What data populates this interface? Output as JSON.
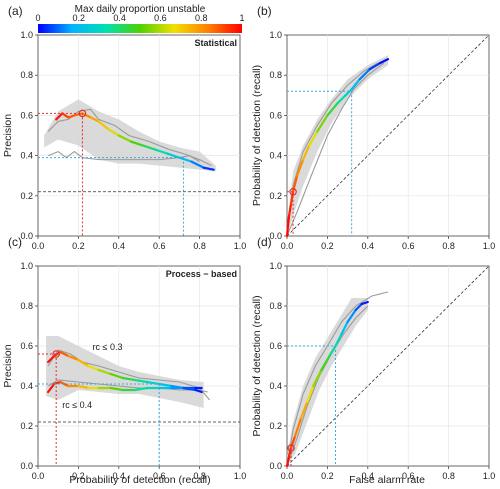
{
  "colorbar": {
    "title": "Max daily proportion unstable",
    "ticks": [
      "0",
      "0.2",
      "0.4",
      "0.6",
      "0.8",
      "1"
    ],
    "tick_values": [
      0,
      0.2,
      0.4,
      0.6,
      0.8,
      1
    ],
    "colors": [
      "#0000ff",
      "#00b4ff",
      "#00e0b0",
      "#4cd200",
      "#f0e000",
      "#ff8000",
      "#ff0000"
    ]
  },
  "figure": {
    "shared_xlabel_left": "Probability of detection (recall)",
    "shared_xlabel_right": "False alarm rate"
  },
  "chart_data": [
    {
      "panel": "(a)",
      "title": "Statistical",
      "type": "line",
      "xlabel": "",
      "ylabel": "Precision",
      "xlim": [
        0,
        1
      ],
      "ylim": [
        0,
        1
      ],
      "xticks": [
        "0.0",
        "0.2",
        "0.4",
        "0.6",
        "0.8",
        "1.0"
      ],
      "yticks": [
        "0.0",
        "0.2",
        "0.4",
        "0.6",
        "0.8",
        "1.0"
      ],
      "grid": true,
      "diagonal": false,
      "baseline_y": 0.22,
      "markers": [
        {
          "x": 0.22,
          "y": 0.61,
          "color": "#e03030"
        },
        {
          "x": 0.72,
          "y": 0.39,
          "color": "#3aa8dd"
        }
      ],
      "band": {
        "upper": [
          [
            0.03,
            0.5
          ],
          [
            0.1,
            0.62
          ],
          [
            0.2,
            0.68
          ],
          [
            0.3,
            0.62
          ],
          [
            0.4,
            0.58
          ],
          [
            0.5,
            0.52
          ],
          [
            0.6,
            0.47
          ],
          [
            0.7,
            0.44
          ],
          [
            0.8,
            0.42
          ],
          [
            0.88,
            0.35
          ]
        ],
        "lower": [
          [
            0.88,
            0.32
          ],
          [
            0.8,
            0.33
          ],
          [
            0.7,
            0.34
          ],
          [
            0.6,
            0.35
          ],
          [
            0.5,
            0.36
          ],
          [
            0.4,
            0.36
          ],
          [
            0.3,
            0.38
          ],
          [
            0.2,
            0.45
          ],
          [
            0.1,
            0.48
          ],
          [
            0.03,
            0.44
          ]
        ]
      },
      "grey_lines": [
        [
          [
            0.05,
            0.52
          ],
          [
            0.1,
            0.57
          ],
          [
            0.15,
            0.58
          ],
          [
            0.2,
            0.62
          ],
          [
            0.26,
            0.63
          ],
          [
            0.3,
            0.58
          ],
          [
            0.38,
            0.55
          ],
          [
            0.45,
            0.5
          ],
          [
            0.55,
            0.47
          ],
          [
            0.65,
            0.43
          ],
          [
            0.72,
            0.41
          ],
          [
            0.8,
            0.38
          ],
          [
            0.86,
            0.35
          ]
        ],
        [
          [
            0.05,
            0.4
          ],
          [
            0.1,
            0.42
          ],
          [
            0.14,
            0.39
          ],
          [
            0.18,
            0.42
          ],
          [
            0.22,
            0.39
          ],
          [
            0.3,
            0.38
          ],
          [
            0.4,
            0.38
          ],
          [
            0.5,
            0.38
          ],
          [
            0.6,
            0.38
          ],
          [
            0.7,
            0.39
          ],
          [
            0.75,
            0.4
          ],
          [
            0.8,
            0.37
          ]
        ]
      ],
      "color_line": {
        "x": [
          0.09,
          0.12,
          0.15,
          0.18,
          0.22,
          0.26,
          0.3,
          0.35,
          0.4,
          0.46,
          0.52,
          0.58,
          0.64,
          0.7,
          0.76,
          0.82,
          0.87
        ],
        "y": [
          0.58,
          0.61,
          0.59,
          0.6,
          0.61,
          0.59,
          0.57,
          0.53,
          0.5,
          0.47,
          0.45,
          0.43,
          0.41,
          0.39,
          0.37,
          0.34,
          0.33
        ],
        "c": [
          1.0,
          0.95,
          0.9,
          0.88,
          0.85,
          0.8,
          0.75,
          0.68,
          0.6,
          0.52,
          0.45,
          0.38,
          0.3,
          0.22,
          0.15,
          0.08,
          0.02
        ]
      },
      "annotations": []
    },
    {
      "panel": "(b)",
      "title": "",
      "type": "line",
      "xlabel": "",
      "ylabel": "Probability of detection (recall)",
      "xlim": [
        0,
        1
      ],
      "ylim": [
        0,
        1
      ],
      "xticks": [
        "0.0",
        "0.2",
        "0.4",
        "0.6",
        "0.8",
        "1.0"
      ],
      "yticks": [
        "0.0",
        "0.2",
        "0.4",
        "0.6",
        "0.8",
        "1.0"
      ],
      "grid": true,
      "diagonal": true,
      "baseline_y": null,
      "markers": [
        {
          "x": 0.03,
          "y": 0.22,
          "color": "#e03030"
        },
        {
          "x": 0.32,
          "y": 0.72,
          "color": "#3aa8dd"
        }
      ],
      "band": {
        "upper": [
          [
            0.0,
            0.05
          ],
          [
            0.03,
            0.32
          ],
          [
            0.08,
            0.45
          ],
          [
            0.15,
            0.58
          ],
          [
            0.22,
            0.68
          ],
          [
            0.3,
            0.78
          ],
          [
            0.4,
            0.85
          ],
          [
            0.5,
            0.9
          ]
        ],
        "lower": [
          [
            0.5,
            0.85
          ],
          [
            0.4,
            0.78
          ],
          [
            0.3,
            0.68
          ],
          [
            0.22,
            0.56
          ],
          [
            0.15,
            0.42
          ],
          [
            0.08,
            0.25
          ],
          [
            0.03,
            0.1
          ],
          [
            0.0,
            0.0
          ]
        ]
      },
      "grey_lines": [
        [
          [
            0.0,
            0.0
          ],
          [
            0.03,
            0.25
          ],
          [
            0.08,
            0.42
          ],
          [
            0.15,
            0.55
          ],
          [
            0.22,
            0.66
          ],
          [
            0.3,
            0.75
          ],
          [
            0.38,
            0.82
          ],
          [
            0.45,
            0.86
          ]
        ],
        [
          [
            0.0,
            0.0
          ],
          [
            0.05,
            0.12
          ],
          [
            0.12,
            0.3
          ],
          [
            0.2,
            0.5
          ],
          [
            0.27,
            0.63
          ],
          [
            0.33,
            0.73
          ],
          [
            0.4,
            0.8
          ],
          [
            0.48,
            0.86
          ]
        ]
      ],
      "color_line": {
        "x": [
          0.0,
          0.01,
          0.02,
          0.03,
          0.05,
          0.08,
          0.11,
          0.15,
          0.2,
          0.25,
          0.29,
          0.32,
          0.36,
          0.41,
          0.46,
          0.5
        ],
        "y": [
          0.0,
          0.1,
          0.16,
          0.22,
          0.3,
          0.38,
          0.45,
          0.52,
          0.6,
          0.66,
          0.7,
          0.73,
          0.78,
          0.83,
          0.86,
          0.88
        ],
        "c": [
          1.0,
          0.98,
          0.95,
          0.9,
          0.85,
          0.78,
          0.7,
          0.6,
          0.5,
          0.4,
          0.3,
          0.22,
          0.15,
          0.08,
          0.03,
          0.0
        ]
      },
      "annotations": []
    },
    {
      "panel": "(c)",
      "title": "Process − based",
      "type": "line",
      "xlabel": "Probability of detection (recall)",
      "ylabel": "Precision",
      "xlim": [
        0,
        1
      ],
      "ylim": [
        0,
        1
      ],
      "xticks": [
        "0.0",
        "0.2",
        "0.4",
        "0.6",
        "0.8",
        "1.0"
      ],
      "yticks": [
        "0.0",
        "0.2",
        "0.4",
        "0.6",
        "0.8",
        "1.0"
      ],
      "grid": true,
      "diagonal": false,
      "baseline_y": 0.22,
      "markers": [
        {
          "x": 0.09,
          "y": 0.56,
          "color": "#e03030"
        },
        {
          "x": 0.6,
          "y": 0.41,
          "color": "#3aa8dd"
        }
      ],
      "band": {
        "upper": [
          [
            0.04,
            0.65
          ],
          [
            0.1,
            0.65
          ],
          [
            0.2,
            0.6
          ],
          [
            0.3,
            0.55
          ],
          [
            0.4,
            0.5
          ],
          [
            0.5,
            0.47
          ],
          [
            0.6,
            0.45
          ],
          [
            0.7,
            0.43
          ],
          [
            0.82,
            0.42
          ]
        ],
        "lower": [
          [
            0.82,
            0.29
          ],
          [
            0.7,
            0.32
          ],
          [
            0.6,
            0.34
          ],
          [
            0.5,
            0.36
          ],
          [
            0.4,
            0.36
          ],
          [
            0.3,
            0.37
          ],
          [
            0.2,
            0.38
          ],
          [
            0.1,
            0.33
          ],
          [
            0.04,
            0.35
          ]
        ]
      },
      "grey_lines": [
        [
          [
            0.05,
            0.5
          ],
          [
            0.1,
            0.58
          ],
          [
            0.16,
            0.56
          ],
          [
            0.22,
            0.52
          ],
          [
            0.3,
            0.5
          ],
          [
            0.4,
            0.47
          ],
          [
            0.5,
            0.44
          ],
          [
            0.6,
            0.43
          ],
          [
            0.7,
            0.42
          ],
          [
            0.8,
            0.39
          ],
          [
            0.85,
            0.33
          ]
        ],
        [
          [
            0.05,
            0.4
          ],
          [
            0.1,
            0.43
          ],
          [
            0.2,
            0.42
          ],
          [
            0.3,
            0.41
          ],
          [
            0.4,
            0.4
          ],
          [
            0.5,
            0.39
          ],
          [
            0.6,
            0.39
          ],
          [
            0.7,
            0.38
          ],
          [
            0.8,
            0.38
          ],
          [
            0.84,
            0.37
          ]
        ]
      ],
      "color_line": {
        "x": [
          0.05,
          0.08,
          0.11,
          0.15,
          0.2,
          0.25,
          0.3,
          0.36,
          0.42,
          0.48,
          0.54,
          0.6,
          0.66,
          0.72,
          0.78,
          0.81
        ],
        "y": [
          0.52,
          0.55,
          0.57,
          0.55,
          0.53,
          0.5,
          0.48,
          0.46,
          0.44,
          0.43,
          0.42,
          0.41,
          0.4,
          0.39,
          0.38,
          0.37
        ],
        "c": [
          1.0,
          0.96,
          0.92,
          0.85,
          0.78,
          0.7,
          0.62,
          0.55,
          0.48,
          0.4,
          0.32,
          0.25,
          0.18,
          0.1,
          0.05,
          0.0
        ]
      },
      "color_line2": {
        "x": [
          0.05,
          0.08,
          0.11,
          0.15,
          0.2,
          0.25,
          0.3,
          0.36,
          0.42,
          0.48,
          0.54,
          0.6,
          0.66,
          0.72,
          0.78,
          0.81
        ],
        "y": [
          0.37,
          0.41,
          0.42,
          0.4,
          0.4,
          0.39,
          0.39,
          0.39,
          0.38,
          0.38,
          0.39,
          0.39,
          0.39,
          0.39,
          0.39,
          0.39
        ],
        "c": [
          1.0,
          0.96,
          0.92,
          0.85,
          0.78,
          0.7,
          0.62,
          0.55,
          0.48,
          0.4,
          0.32,
          0.25,
          0.18,
          0.1,
          0.05,
          0.0
        ]
      },
      "annotations": [
        {
          "text": "rc ≤ 0.3",
          "x": 0.27,
          "y": 0.58
        },
        {
          "text": "rc ≤ 0.4",
          "x": 0.12,
          "y": 0.29
        }
      ]
    },
    {
      "panel": "(d)",
      "title": "",
      "type": "line",
      "xlabel": "False alarm rate",
      "ylabel": "Probability of detection (recall)",
      "xlim": [
        0,
        1
      ],
      "ylim": [
        0,
        1
      ],
      "xticks": [
        "0.0",
        "0.2",
        "0.4",
        "0.6",
        "0.8",
        "1.0"
      ],
      "yticks": [
        "0.0",
        "0.2",
        "0.4",
        "0.6",
        "0.8",
        "1.0"
      ],
      "grid": true,
      "diagonal": true,
      "baseline_y": null,
      "markers": [
        {
          "x": 0.02,
          "y": 0.09,
          "color": "#e03030"
        },
        {
          "x": 0.24,
          "y": 0.6,
          "color": "#3aa8dd"
        }
      ],
      "band": {
        "upper": [
          [
            0.0,
            0.05
          ],
          [
            0.03,
            0.22
          ],
          [
            0.08,
            0.4
          ],
          [
            0.14,
            0.54
          ],
          [
            0.2,
            0.64
          ],
          [
            0.26,
            0.74
          ],
          [
            0.32,
            0.84
          ],
          [
            0.4,
            0.84
          ]
        ],
        "lower": [
          [
            0.4,
            0.78
          ],
          [
            0.34,
            0.7
          ],
          [
            0.28,
            0.6
          ],
          [
            0.22,
            0.5
          ],
          [
            0.16,
            0.38
          ],
          [
            0.1,
            0.22
          ],
          [
            0.04,
            0.06
          ],
          [
            0.0,
            0.0
          ]
        ]
      },
      "grey_lines": [
        [
          [
            0.0,
            0.0
          ],
          [
            0.03,
            0.18
          ],
          [
            0.08,
            0.36
          ],
          [
            0.14,
            0.5
          ],
          [
            0.2,
            0.6
          ],
          [
            0.27,
            0.72
          ],
          [
            0.34,
            0.8
          ],
          [
            0.42,
            0.85
          ],
          [
            0.5,
            0.87
          ]
        ],
        [
          [
            0.0,
            0.0
          ],
          [
            0.05,
            0.14
          ],
          [
            0.1,
            0.3
          ],
          [
            0.16,
            0.45
          ],
          [
            0.22,
            0.56
          ],
          [
            0.28,
            0.66
          ],
          [
            0.34,
            0.74
          ],
          [
            0.4,
            0.8
          ]
        ]
      ],
      "color_line": {
        "x": [
          0.0,
          0.01,
          0.02,
          0.04,
          0.07,
          0.1,
          0.13,
          0.17,
          0.21,
          0.24,
          0.27,
          0.3,
          0.34,
          0.37,
          0.4
        ],
        "y": [
          0.0,
          0.05,
          0.09,
          0.15,
          0.24,
          0.32,
          0.4,
          0.48,
          0.55,
          0.6,
          0.66,
          0.72,
          0.78,
          0.81,
          0.82
        ],
        "c": [
          1.0,
          0.97,
          0.93,
          0.88,
          0.8,
          0.72,
          0.62,
          0.52,
          0.42,
          0.33,
          0.25,
          0.17,
          0.1,
          0.04,
          0.0
        ]
      },
      "annotations": []
    }
  ]
}
